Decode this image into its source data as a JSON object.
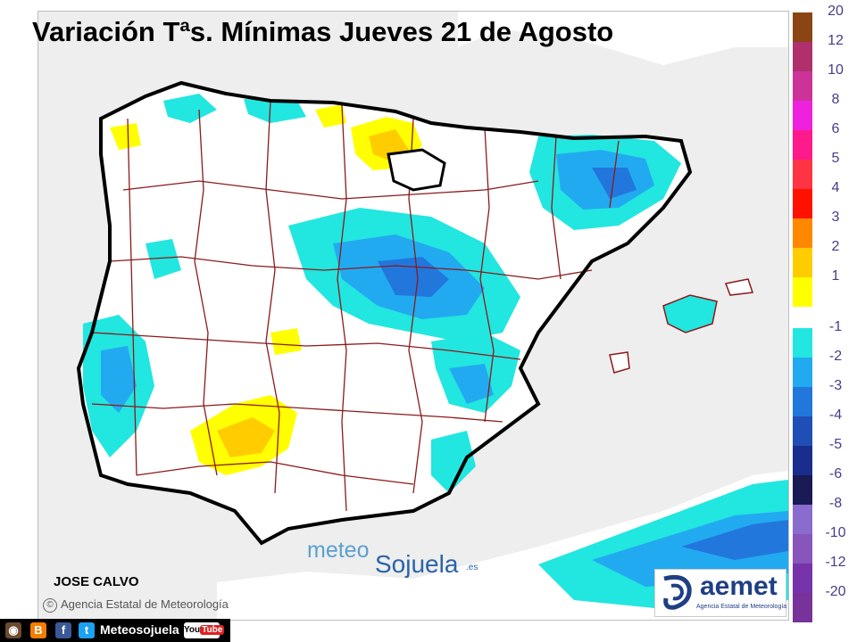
{
  "title": "Variación Tªs. Mínimas Jueves 21 de Agosto",
  "legend": {
    "items": [
      {
        "label": "20",
        "color": "#8b4513"
      },
      {
        "label": "12",
        "color": "#b0306e"
      },
      {
        "label": "10",
        "color": "#cc3399"
      },
      {
        "label": "8",
        "color": "#ee22dd"
      },
      {
        "label": "6",
        "color": "#ff1a8c"
      },
      {
        "label": "5",
        "color": "#ff3344"
      },
      {
        "label": "4",
        "color": "#ff1100"
      },
      {
        "label": "3",
        "color": "#ff8800"
      },
      {
        "label": "2",
        "color": "#ffcc00"
      },
      {
        "label": "1",
        "color": "#ffff00"
      },
      {
        "label": "-1",
        "color": "#22e6e0"
      },
      {
        "label": "-2",
        "color": "#22aaf0"
      },
      {
        "label": "-3",
        "color": "#2277dd"
      },
      {
        "label": "-4",
        "color": "#1f4fb5"
      },
      {
        "label": "-5",
        "color": "#1a2d8c"
      },
      {
        "label": "-6",
        "color": "#1a1a55"
      },
      {
        "label": "-8",
        "color": "#8a6ccf"
      },
      {
        "label": "-10",
        "color": "#8855bb"
      },
      {
        "label": "-12",
        "color": "#7733aa"
      },
      {
        "label": "-20",
        "color": "#773399"
      }
    ]
  },
  "author": "JOSE CALVO",
  "credit": "Agencia Estatal de Meteorología",
  "watermark": {
    "part1": "meteo",
    "part2": "Sojuela",
    "part3": ".es"
  },
  "aemet": {
    "name": "aemet",
    "subtitle": "Agencia Estatal de Meteorología"
  },
  "social": {
    "name": "Meteosojuela",
    "youtube": "You",
    "youtube_tube": "Tube"
  },
  "colors": {
    "sea": "#eeeeee",
    "land": "#ffffff",
    "coast": "#000000",
    "borders": "#8b1a1a"
  }
}
